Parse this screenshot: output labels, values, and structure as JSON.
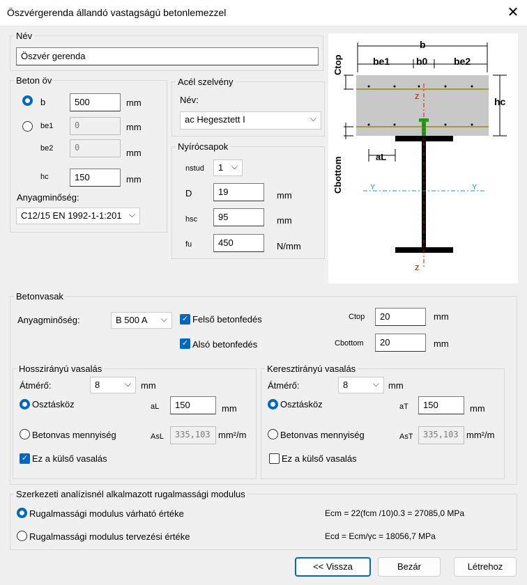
{
  "window": {
    "title": "Öszvérgerenda állandó vastagságú betonlemezzel"
  },
  "nev": {
    "legend": "Név",
    "value": "Öszvér gerenda"
  },
  "beton_ov": {
    "legend": "Beton öv",
    "b_label": "b",
    "b_value": "500",
    "b_unit": "mm",
    "be1_label": "be1",
    "be1_value": "0",
    "be1_unit": "mm",
    "be2_label": "be2",
    "be2_value": "0",
    "be2_unit": "mm",
    "hc_label": "hc",
    "hc_value": "150",
    "hc_unit": "mm",
    "anyag_label": "Anyagminőség:",
    "anyag_value": "C12/15 EN 1992-1-1:201"
  },
  "acel": {
    "legend": "Acél szelvény",
    "nev_label": "Név:",
    "nev_value": "ac Hegesztett I"
  },
  "nyiro": {
    "legend": "Nyírócsapok",
    "nstud_label": "nstud",
    "nstud_value": "1",
    "d_label": "D",
    "d_value": "19",
    "d_unit": "mm",
    "hsc_label": "hsc",
    "hsc_value": "95",
    "hsc_unit": "mm",
    "fu_label": "fu",
    "fu_value": "450",
    "fu_unit": "N/mm"
  },
  "diagram": {
    "b": "b",
    "be1": "be1",
    "b0": "b0",
    "be2": "be2",
    "ctop": "Ctop",
    "cbottom": "Cbottom",
    "hc": "hc",
    "al": "aL",
    "z_top": "z",
    "z_bottom": "z",
    "y_left": "Y",
    "y_right": "Y"
  },
  "betonvasak": {
    "legend": "Betonvasak",
    "anyag_label": "Anyagminőség:",
    "anyag_value": "B 500 A",
    "felso_label": "Felső betonfedés",
    "also_label": "Alsó betonfedés",
    "ctop_label": "Ctop",
    "ctop_value": "20",
    "ctop_unit": "mm",
    "cbottom_label": "Cbottom",
    "cbottom_value": "20",
    "cbottom_unit": "mm"
  },
  "hossz": {
    "legend": "Hosszirányú vasalás",
    "atmero_label": "Átmérő:",
    "atmero_value": "8",
    "atmero_unit": "mm",
    "osztaskoz_label": "Osztásköz",
    "a_label": "aL",
    "a_value": "150",
    "a_unit": "mm",
    "mennyiseg_label": "Betonvas mennyiség",
    "as_label": "AsL",
    "as_value": "335,103",
    "as_unit": "mm²/m",
    "kulso_label": "Ez a külső vasalás"
  },
  "kereszt": {
    "legend": "Keresztirányú vasalás",
    "atmero_label": "Átmérő:",
    "atmero_value": "8",
    "atmero_unit": "mm",
    "osztaskoz_label": "Osztásköz",
    "a_label": "aT",
    "a_value": "150",
    "a_unit": "mm",
    "mennyiseg_label": "Betonvas mennyiség",
    "as_label": "AsT",
    "as_value": "335,103",
    "as_unit": "mm²/m",
    "kulso_label": "Ez a külső vasalás"
  },
  "modulus": {
    "legend": "Szerkezeti analízisnél alkalmazott rugalmassági modulus",
    "varhato_label": "Rugalmassági modulus várható értéke",
    "tervezesi_label": "Rugalmassági modulus tervezési értéke",
    "ecm_formula": "Ecm = 22(fcm /10)0.3 = 27085,0 MPa",
    "ecd_formula": "Ecd = Ecm/γc = 18056,7 MPa"
  },
  "buttons": {
    "back": "<< Vissza",
    "close": "Bezár",
    "create": "Létrehoz"
  }
}
